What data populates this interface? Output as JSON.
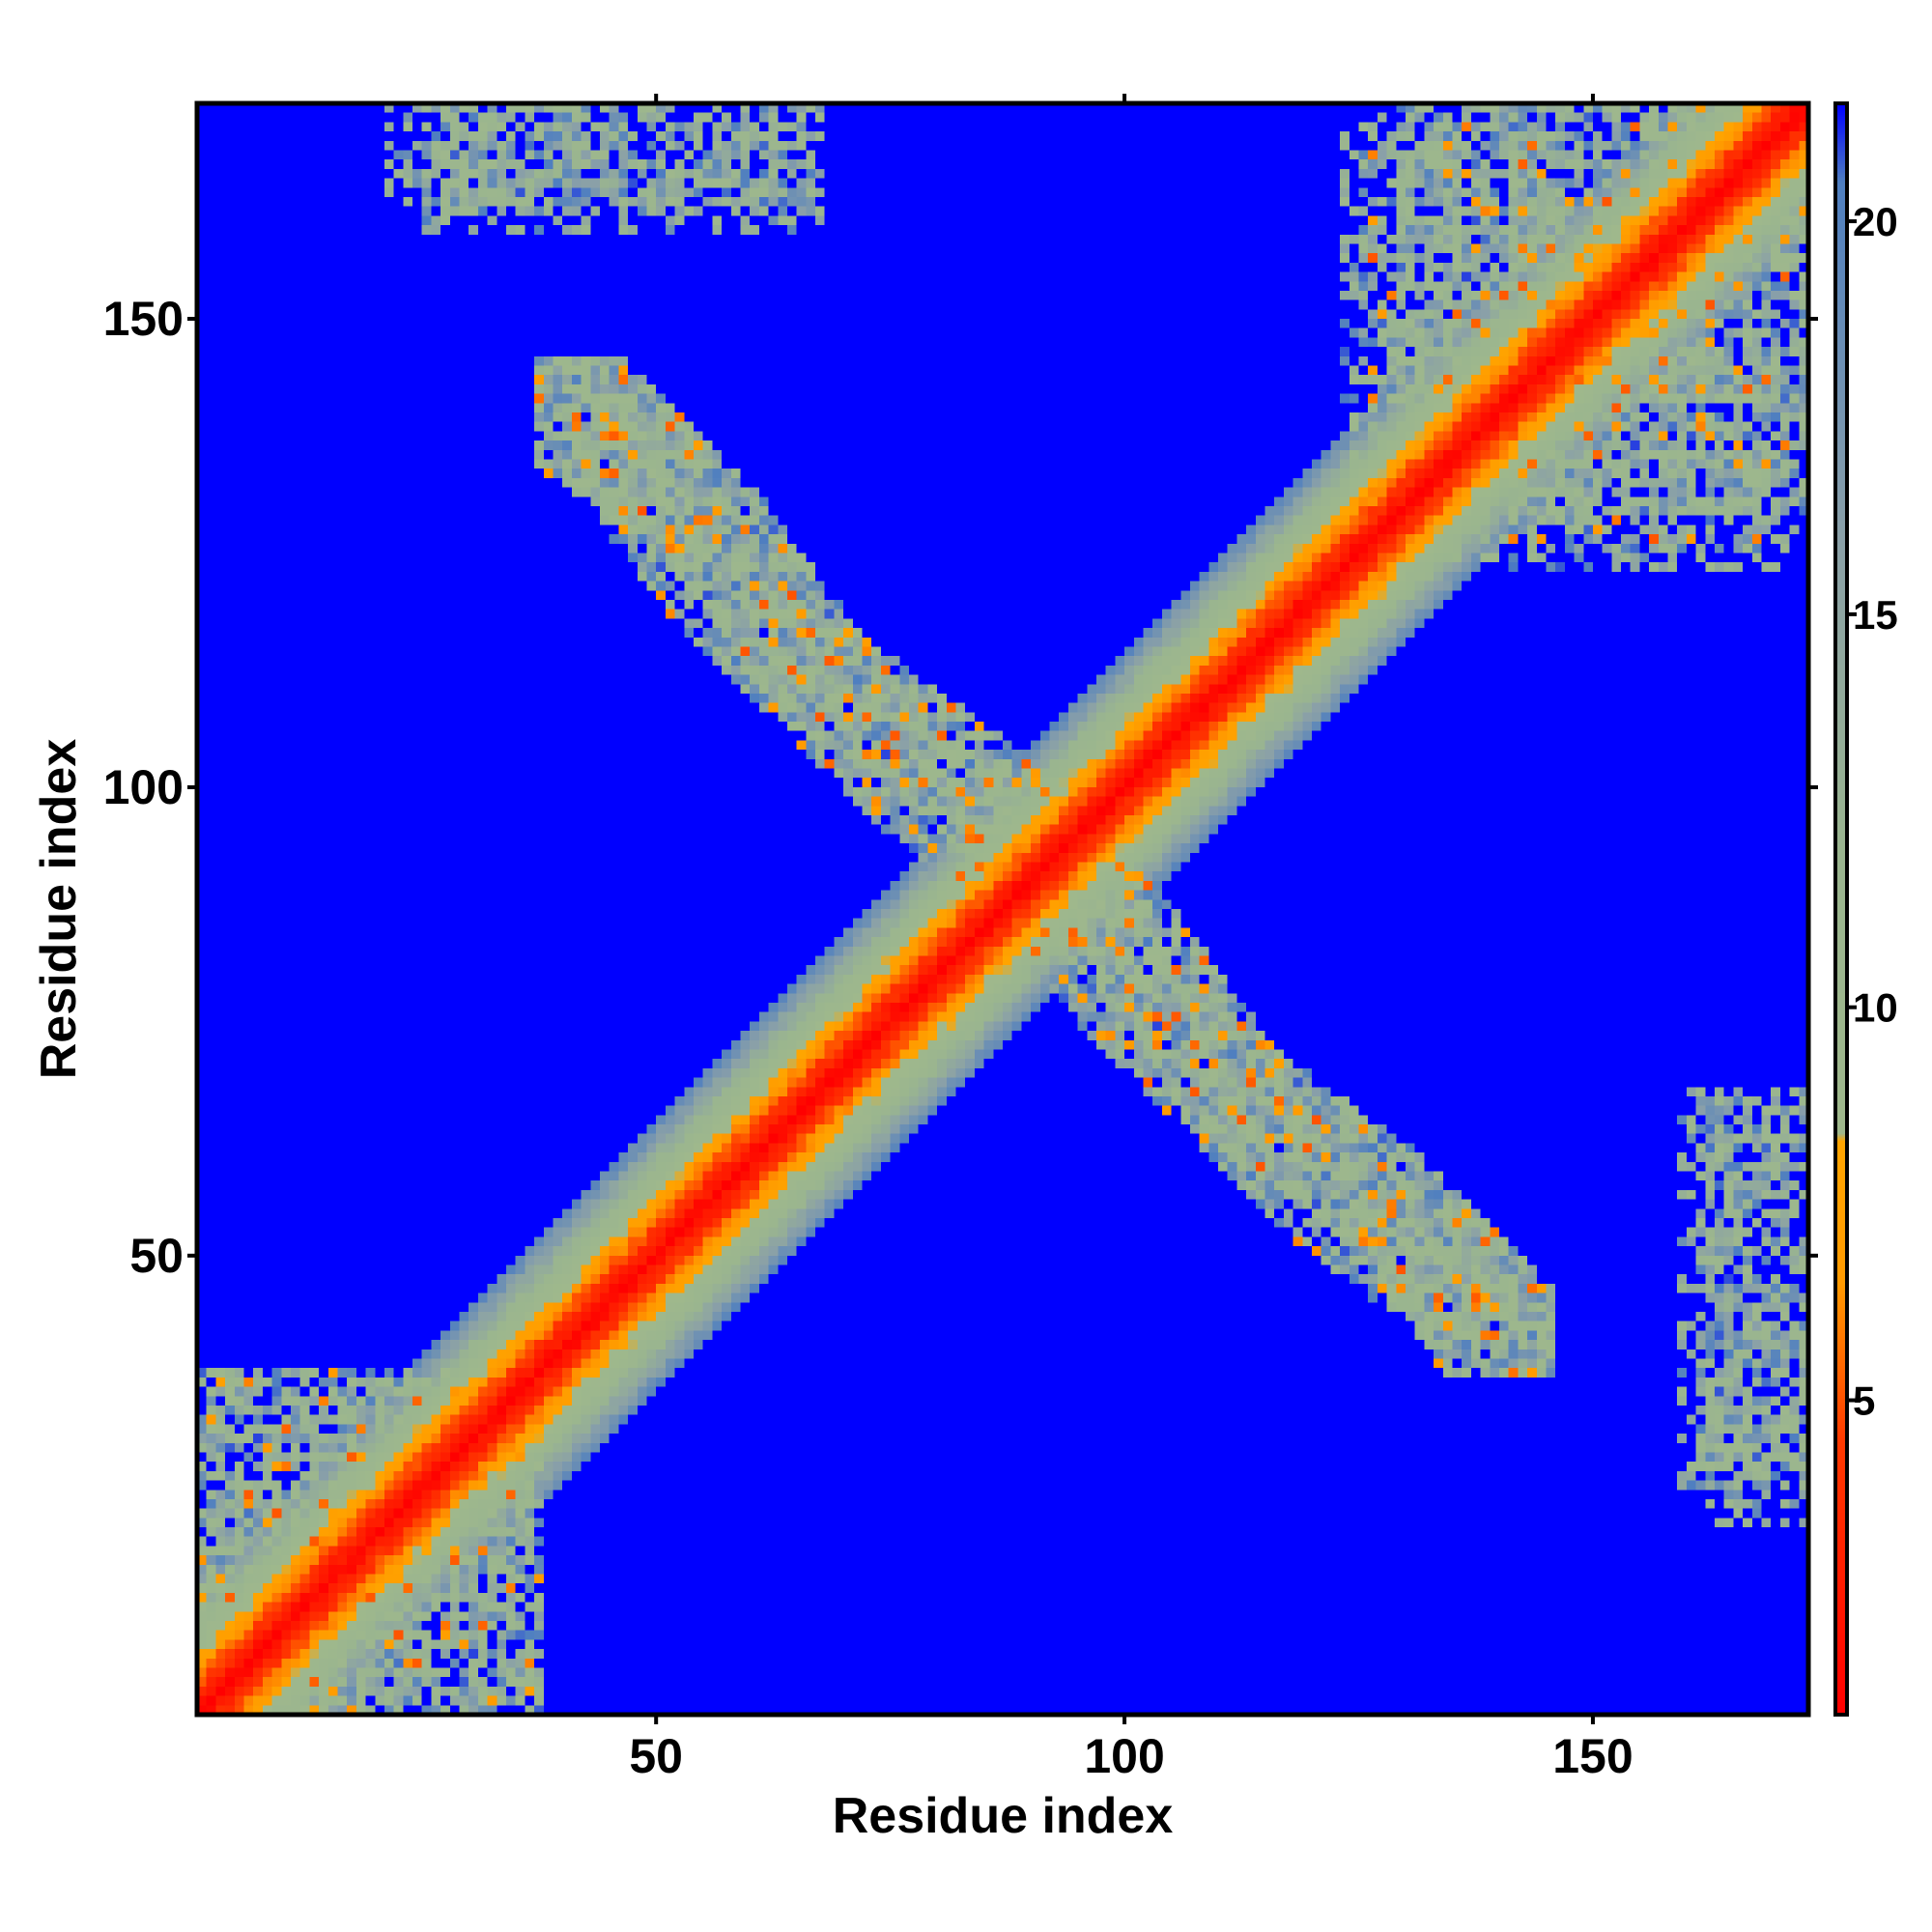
{
  "chart_data": {
    "type": "heatmap",
    "title": "",
    "xlabel": "Residue index",
    "ylabel": "Residue index",
    "xlim": [
      1,
      172
    ],
    "ylim": [
      1,
      172
    ],
    "x_ticks": [
      50,
      100,
      150
    ],
    "y_ticks": [
      50,
      100,
      150
    ],
    "grid": false,
    "colorbar": {
      "ticks": [
        5,
        10,
        15,
        20
      ],
      "range": [
        1,
        21.5
      ],
      "stops": [
        {
          "value": 1,
          "color": "#ff0000"
        },
        {
          "value": 4.5,
          "color": "#ff3a00"
        },
        {
          "value": 6.5,
          "color": "#ff9a00"
        },
        {
          "value": 8.3,
          "color": "#ffa500"
        },
        {
          "value": 8.4,
          "color": "#9fb88c"
        },
        {
          "value": 12,
          "color": "#9ab58f"
        },
        {
          "value": 16,
          "color": "#8aa0a8"
        },
        {
          "value": 20.5,
          "color": "#4f7fc0"
        },
        {
          "value": 21.5,
          "color": "#0000ff"
        }
      ],
      "background_color": "#0000ff"
    },
    "matrix_description": "symmetric residue contact/distance map",
    "features": [
      {
        "kind": "diagonal",
        "from": 1,
        "to": 172
      },
      {
        "kind": "anti_block",
        "x_from": 37,
        "x_to": 143,
        "y_from": 140,
        "y_to": 37
      },
      {
        "kind": "block",
        "x": [
          1,
          36
        ],
        "y": [
          1,
          36
        ]
      },
      {
        "kind": "block",
        "x": [
          25,
          66
        ],
        "y": [
          158,
          172
        ]
      },
      {
        "kind": "block",
        "x": [
          158,
          172
        ],
        "y": [
          25,
          66
        ]
      },
      {
        "kind": "block",
        "x": [
          123,
          145
        ],
        "y": [
          130,
          168
        ]
      },
      {
        "kind": "block",
        "x": [
          140,
          172
        ],
        "y": [
          123,
          145
        ]
      },
      {
        "kind": "block",
        "x": [
          130,
          172
        ],
        "y": [
          140,
          172
        ]
      }
    ]
  }
}
